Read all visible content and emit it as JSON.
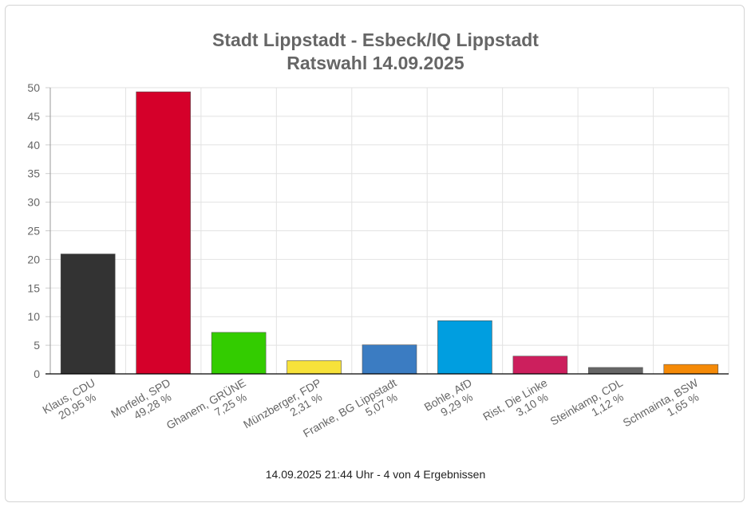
{
  "chart_data": {
    "type": "bar",
    "title": "Stadt Lippstadt - Esbeck/IQ Lippstadt",
    "subtitle": "Ratswahl 14.09.2025",
    "categories": [
      {
        "name": "Klaus, CDU",
        "label": "20,95 %"
      },
      {
        "name": "Morfeld, SPD",
        "label": "49,28 %"
      },
      {
        "name": "Ghanem, GRÜNE",
        "label": "7,25 %"
      },
      {
        "name": "Münzberger, FDP",
        "label": "2,31 %"
      },
      {
        "name": "Franke, BG Lippstadt",
        "label": "5,07 %"
      },
      {
        "name": "Bohle, AfD",
        "label": "9,29 %"
      },
      {
        "name": "Rist, Die Linke",
        "label": "3,10 %"
      },
      {
        "name": "Steinkamp, CDL",
        "label": "1,12 %"
      },
      {
        "name": "Schmainta, BSW",
        "label": "1,65 %"
      }
    ],
    "values": [
      20.95,
      49.28,
      7.25,
      2.31,
      5.07,
      9.29,
      3.1,
      1.12,
      1.65
    ],
    "colors": [
      "#333333",
      "#d5002a",
      "#33cc00",
      "#f7e23a",
      "#3b7cc2",
      "#009ee0",
      "#cc1f5d",
      "#666666",
      "#f58a07"
    ],
    "ylim": [
      0,
      50
    ],
    "yticks": [
      "0",
      "5",
      "10",
      "15",
      "20",
      "25",
      "30",
      "35",
      "40",
      "45",
      "50"
    ],
    "grid": true,
    "legend": "none"
  },
  "footer": "14.09.2025 21:44 Uhr - 4 von 4 Ergebnissen"
}
